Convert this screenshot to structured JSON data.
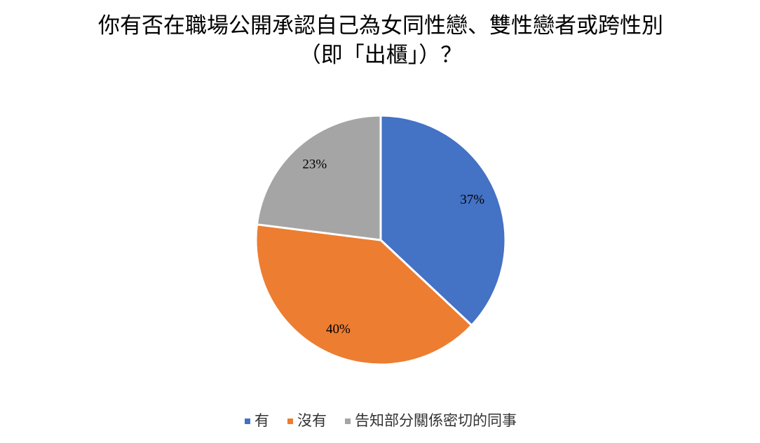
{
  "chart_data": {
    "type": "pie",
    "title": [
      "你有否在職場公開承認自己為女同性戀、雙性戀者或跨性別",
      "（即「出櫃」）？"
    ],
    "categories": [
      "有",
      "沒有",
      "告知部分關係密切的同事"
    ],
    "values": [
      37,
      40,
      23
    ],
    "value_labels": [
      "37%",
      "40%",
      "23%"
    ],
    "colors": [
      "#4472c4",
      "#ed7d31",
      "#a5a5a5"
    ],
    "legend": "bottom"
  }
}
